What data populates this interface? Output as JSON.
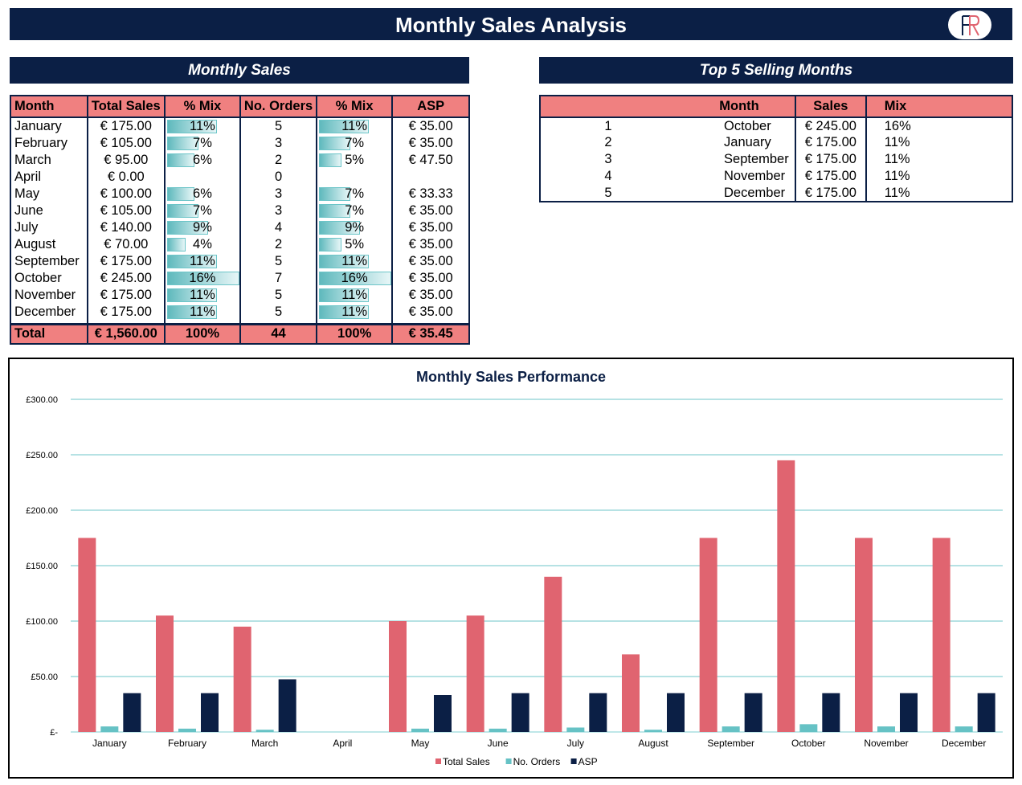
{
  "header": {
    "title": "Monthly Sales Analysis",
    "logo_text": "FR"
  },
  "monthly_sales": {
    "title": "Monthly Sales",
    "columns": [
      "Month",
      "Total Sales",
      "% Mix",
      "No. Orders",
      "% Mix",
      "ASP"
    ],
    "rows": [
      {
        "month": "January",
        "sales": "€ 175.00",
        "mix": "11%",
        "orders": "5",
        "omix": "11%",
        "asp": "€ 35.00",
        "mix_v": 0.11,
        "omix_v": 0.11
      },
      {
        "month": "February",
        "sales": "€ 105.00",
        "mix": "7%",
        "orders": "3",
        "omix": "7%",
        "asp": "€ 35.00",
        "mix_v": 0.07,
        "omix_v": 0.07
      },
      {
        "month": "March",
        "sales": "€ 95.00",
        "mix": "6%",
        "orders": "2",
        "omix": "5%",
        "asp": "€ 47.50",
        "mix_v": 0.06,
        "omix_v": 0.05
      },
      {
        "month": "April",
        "sales": "€ 0.00",
        "mix": "",
        "orders": "0",
        "omix": "",
        "asp": "",
        "mix_v": 0,
        "omix_v": 0
      },
      {
        "month": "May",
        "sales": "€ 100.00",
        "mix": "6%",
        "orders": "3",
        "omix": "7%",
        "asp": "€ 33.33",
        "mix_v": 0.06,
        "omix_v": 0.07
      },
      {
        "month": "June",
        "sales": "€ 105.00",
        "mix": "7%",
        "orders": "3",
        "omix": "7%",
        "asp": "€ 35.00",
        "mix_v": 0.07,
        "omix_v": 0.07
      },
      {
        "month": "July",
        "sales": "€ 140.00",
        "mix": "9%",
        "orders": "4",
        "omix": "9%",
        "asp": "€ 35.00",
        "mix_v": 0.09,
        "omix_v": 0.09
      },
      {
        "month": "August",
        "sales": "€ 70.00",
        "mix": "4%",
        "orders": "2",
        "omix": "5%",
        "asp": "€ 35.00",
        "mix_v": 0.04,
        "omix_v": 0.05
      },
      {
        "month": "September",
        "sales": "€ 175.00",
        "mix": "11%",
        "orders": "5",
        "omix": "11%",
        "asp": "€ 35.00",
        "mix_v": 0.11,
        "omix_v": 0.11
      },
      {
        "month": "October",
        "sales": "€ 245.00",
        "mix": "16%",
        "orders": "7",
        "omix": "16%",
        "asp": "€ 35.00",
        "mix_v": 0.16,
        "omix_v": 0.16
      },
      {
        "month": "November",
        "sales": "€ 175.00",
        "mix": "11%",
        "orders": "5",
        "omix": "11%",
        "asp": "€ 35.00",
        "mix_v": 0.11,
        "omix_v": 0.11
      },
      {
        "month": "December",
        "sales": "€ 175.00",
        "mix": "11%",
        "orders": "5",
        "omix": "11%",
        "asp": "€ 35.00",
        "mix_v": 0.11,
        "omix_v": 0.11
      }
    ],
    "total": {
      "label": "Total",
      "sales": "€ 1,560.00",
      "mix": "100%",
      "orders": "44",
      "omix": "100%",
      "asp": "€ 35.45"
    }
  },
  "top5": {
    "title": "Top 5 Selling Months",
    "columns": [
      "",
      "Month",
      "Sales",
      "Mix"
    ],
    "rows": [
      {
        "rank": "1",
        "month": "October",
        "sales": "€ 245.00",
        "mix": "16%"
      },
      {
        "rank": "2",
        "month": "January",
        "sales": "€ 175.00",
        "mix": "11%"
      },
      {
        "rank": "3",
        "month": "September",
        "sales": "€ 175.00",
        "mix": "11%"
      },
      {
        "rank": "4",
        "month": "November",
        "sales": "€ 175.00",
        "mix": "11%"
      },
      {
        "rank": "5",
        "month": "December",
        "sales": "€ 175.00",
        "mix": "11%"
      }
    ]
  },
  "colors": {
    "navy": "#0b1f45",
    "salmon": "#f08080",
    "red_bar": "#e06470",
    "teal": "#66c2c5"
  },
  "chart_data": {
    "type": "bar",
    "title": "Monthly Sales Performance",
    "categories": [
      "January",
      "February",
      "March",
      "April",
      "May",
      "June",
      "July",
      "August",
      "September",
      "October",
      "November",
      "December"
    ],
    "series": [
      {
        "name": "Total Sales",
        "color": "#e06470",
        "values": [
          175,
          105,
          95,
          0,
          100,
          105,
          140,
          70,
          175,
          245,
          175,
          175
        ]
      },
      {
        "name": "No. Orders",
        "color": "#66c2c5",
        "values": [
          5,
          3,
          2,
          0,
          3,
          3,
          4,
          2,
          5,
          7,
          5,
          5
        ]
      },
      {
        "name": "ASP",
        "color": "#0b1f45",
        "values": [
          35,
          35,
          47.5,
          0,
          33.33,
          35,
          35,
          35,
          35,
          35,
          35,
          35
        ]
      }
    ],
    "y_ticks": [
      "£-",
      "£50.00",
      "£100.00",
      "£150.00",
      "£200.00",
      "£250.00",
      "£300.00"
    ],
    "ylim": [
      0,
      300
    ],
    "grid": true,
    "legend": "bottom"
  }
}
